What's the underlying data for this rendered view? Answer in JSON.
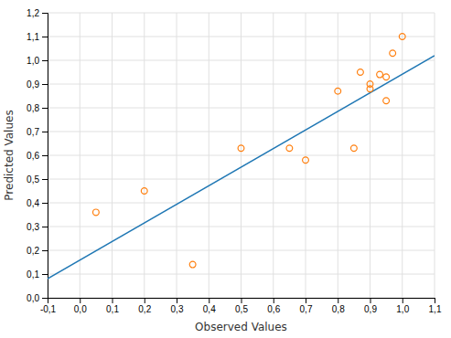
{
  "chart_data": {
    "type": "scatter",
    "xlabel": "Observed Values",
    "ylabel": "Predicted Values",
    "series": [
      {
        "type": "line",
        "line_style": "solid",
        "x": [
          -0.1,
          1.1
        ],
        "values": [
          0.08,
          1.02
        ]
      },
      {
        "type": "scatter",
        "marker": "circle",
        "x": [
          0.05,
          0.2,
          0.35,
          0.5,
          0.65,
          0.7,
          0.8,
          0.85,
          0.87,
          0.9,
          0.9,
          0.93,
          0.95,
          0.95,
          0.97,
          1.0
        ],
        "values": [
          0.36,
          0.45,
          0.14,
          0.63,
          0.63,
          0.58,
          0.87,
          0.63,
          0.95,
          0.9,
          0.88,
          0.94,
          0.93,
          0.83,
          1.03,
          1.1
        ]
      }
    ],
    "xlim": [
      -0.1,
      1.1
    ],
    "ylim": [
      0.0,
      1.2
    ],
    "xticks": [
      {
        "value": -0.1,
        "label": "-0,1"
      },
      {
        "value": 0.0,
        "label": "0,0"
      },
      {
        "value": 0.1,
        "label": "0,1"
      },
      {
        "value": 0.2,
        "label": "0,2"
      },
      {
        "value": 0.3,
        "label": "0,3"
      },
      {
        "value": 0.4,
        "label": "0,4"
      },
      {
        "value": 0.5,
        "label": "0,5"
      },
      {
        "value": 0.6,
        "label": "0,6"
      },
      {
        "value": 0.7,
        "label": "0,7"
      },
      {
        "value": 0.8,
        "label": "0,8"
      },
      {
        "value": 0.9,
        "label": "0,9"
      },
      {
        "value": 1.0,
        "label": "1,0"
      },
      {
        "value": 1.1,
        "label": "1,1"
      }
    ],
    "yticks": [
      {
        "value": 0.0,
        "label": "0,0"
      },
      {
        "value": 0.1,
        "label": "0,1"
      },
      {
        "value": 0.2,
        "label": "0,2"
      },
      {
        "value": 0.3,
        "label": "0,3"
      },
      {
        "value": 0.4,
        "label": "0,4"
      },
      {
        "value": 0.5,
        "label": "0,5"
      },
      {
        "value": 0.6,
        "label": "0,6"
      },
      {
        "value": 0.7,
        "label": "0,7"
      },
      {
        "value": 0.8,
        "label": "0,8"
      },
      {
        "value": 0.9,
        "label": "0,9"
      },
      {
        "value": 1.0,
        "label": "1,0"
      },
      {
        "value": 1.1,
        "label": "1,1"
      },
      {
        "value": 1.2,
        "label": "1,2"
      }
    ],
    "grid": true
  }
}
